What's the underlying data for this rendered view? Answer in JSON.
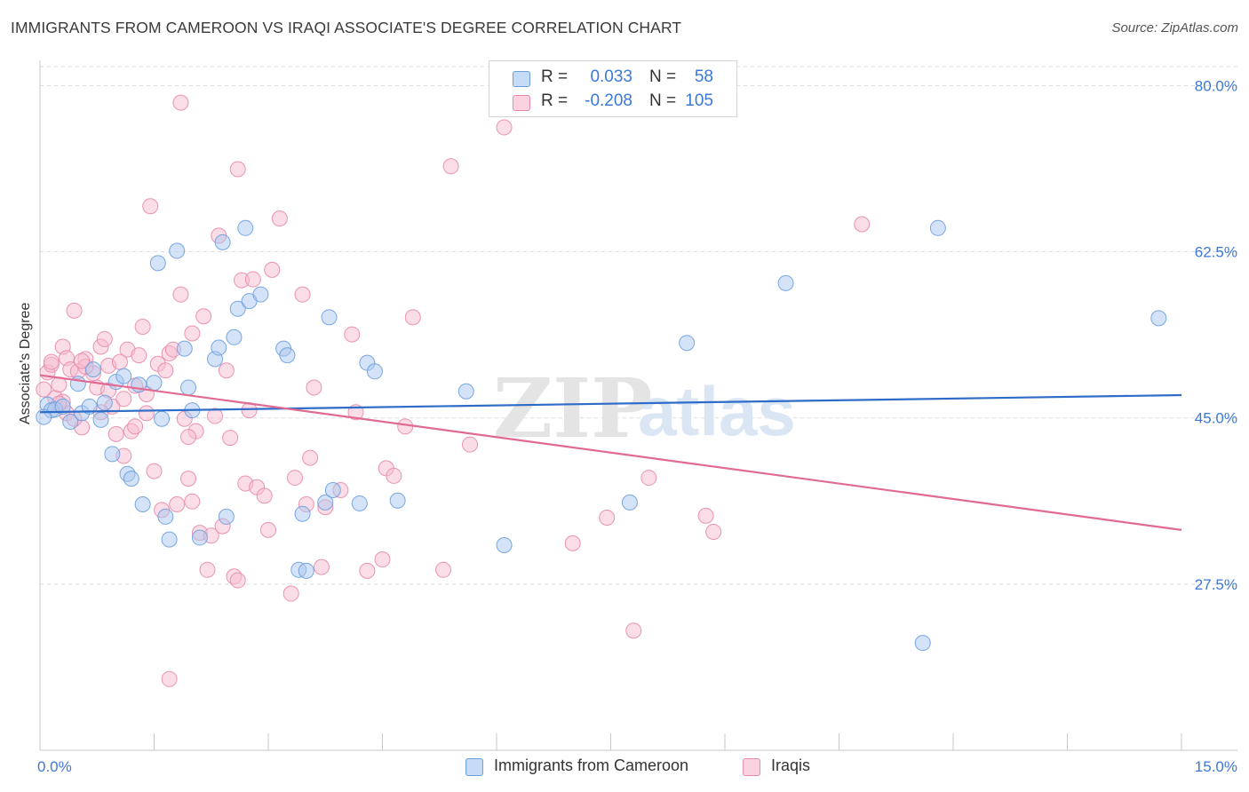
{
  "title": "IMMIGRANTS FROM CAMEROON VS IRAQI ASSOCIATE'S DEGREE CORRELATION CHART",
  "source": "Source: ZipAtlas.com",
  "watermark": {
    "zip": "ZIP",
    "atlas": "atlas"
  },
  "legend": {
    "rows": [
      {
        "r_label": "R =",
        "r_value": "0.033",
        "n_label": "N =",
        "n_value": "58",
        "color": "#aac8f0",
        "border": "#6a9ee0"
      },
      {
        "r_label": "R =",
        "r_value": "-0.208",
        "n_label": "N =",
        "n_value": "105",
        "color": "#f8bcd0",
        "border": "#e88aaa"
      }
    ]
  },
  "bottom_legend": {
    "items": [
      {
        "label": "Immigrants from Cameroon",
        "color": "#aac8f0",
        "border": "#6a9ee0"
      },
      {
        "label": "Iraqis",
        "color": "#f8bcd0",
        "border": "#e88aaa"
      }
    ]
  },
  "chart_data": {
    "type": "scatter",
    "title": "IMMIGRANTS FROM CAMEROON VS IRAQI ASSOCIATE'S DEGREE CORRELATION CHART",
    "xlabel": "",
    "ylabel": "Associate's Degree",
    "xlim": [
      0,
      15
    ],
    "ylim": [
      10,
      82
    ],
    "x_tick_labels": [
      "0.0%",
      "15.0%"
    ],
    "y_ticks": [
      27.5,
      45.0,
      62.5,
      80.0
    ],
    "y_tick_labels": [
      "27.5%",
      "45.0%",
      "62.5%",
      "80.0%"
    ],
    "grid": true,
    "legend_position": "top-center",
    "series": [
      {
        "name": "Immigrants from Cameroon",
        "color": "#6a9ee0",
        "fill": "#aac8f0",
        "trend": {
          "x": [
            0,
            15
          ],
          "y": [
            45.6,
            47.4
          ],
          "color": "#2f6cc8"
        },
        "points": [
          [
            0.1,
            46.4
          ],
          [
            0.15,
            45.8
          ],
          [
            0.2,
            45.9
          ],
          [
            0.3,
            46.2
          ],
          [
            0.4,
            44.6
          ],
          [
            0.5,
            48.6
          ],
          [
            0.55,
            45.5
          ],
          [
            0.65,
            46.2
          ],
          [
            0.7,
            50.1
          ],
          [
            0.8,
            44.8
          ],
          [
            0.85,
            46.6
          ],
          [
            0.95,
            41.2
          ],
          [
            1.0,
            48.8
          ],
          [
            1.1,
            49.4
          ],
          [
            1.15,
            39.1
          ],
          [
            1.2,
            38.6
          ],
          [
            1.3,
            48.5
          ],
          [
            1.35,
            35.9
          ],
          [
            1.5,
            48.7
          ],
          [
            1.55,
            61.3
          ],
          [
            1.6,
            44.9
          ],
          [
            1.65,
            34.6
          ],
          [
            1.7,
            32.2
          ],
          [
            1.8,
            62.6
          ],
          [
            1.9,
            52.3
          ],
          [
            1.95,
            48.2
          ],
          [
            2.0,
            45.8
          ],
          [
            2.1,
            32.4
          ],
          [
            2.3,
            51.2
          ],
          [
            2.35,
            52.4
          ],
          [
            2.4,
            63.5
          ],
          [
            2.45,
            34.6
          ],
          [
            2.55,
            53.5
          ],
          [
            2.6,
            56.5
          ],
          [
            2.7,
            65.0
          ],
          [
            2.75,
            57.3
          ],
          [
            2.9,
            58.0
          ],
          [
            3.2,
            52.3
          ],
          [
            3.25,
            51.6
          ],
          [
            3.4,
            29.0
          ],
          [
            3.45,
            34.9
          ],
          [
            3.5,
            28.9
          ],
          [
            3.75,
            36.1
          ],
          [
            3.8,
            55.6
          ],
          [
            3.85,
            37.4
          ],
          [
            4.2,
            36.0
          ],
          [
            4.3,
            50.8
          ],
          [
            4.4,
            49.9
          ],
          [
            4.7,
            36.3
          ],
          [
            5.6,
            47.8
          ],
          [
            6.1,
            31.6
          ],
          [
            7.75,
            36.1
          ],
          [
            8.5,
            52.9
          ],
          [
            9.8,
            59.2
          ],
          [
            11.6,
            21.3
          ],
          [
            11.8,
            65.0
          ],
          [
            14.7,
            55.5
          ],
          [
            0.05,
            45.1
          ]
        ]
      },
      {
        "name": "Iraqis",
        "color": "#e88aaa",
        "fill": "#f8bcd0",
        "trend": {
          "x": [
            0,
            15
          ],
          "y": [
            49.5,
            33.2
          ],
          "color": "#e06a92"
        },
        "points": [
          [
            0.05,
            48.0
          ],
          [
            0.1,
            49.8
          ],
          [
            0.15,
            50.6
          ],
          [
            0.2,
            47.1
          ],
          [
            0.25,
            48.5
          ],
          [
            0.3,
            52.5
          ],
          [
            0.35,
            51.3
          ],
          [
            0.4,
            50.1
          ],
          [
            0.45,
            56.3
          ],
          [
            0.5,
            49.9
          ],
          [
            0.55,
            44.0
          ],
          [
            0.6,
            51.2
          ],
          [
            0.7,
            49.7
          ],
          [
            0.75,
            48.2
          ],
          [
            0.8,
            52.5
          ],
          [
            0.85,
            53.3
          ],
          [
            0.9,
            50.5
          ],
          [
            0.95,
            46.2
          ],
          [
            1.0,
            43.3
          ],
          [
            1.05,
            50.9
          ],
          [
            1.1,
            47.0
          ],
          [
            1.15,
            52.2
          ],
          [
            1.2,
            43.6
          ],
          [
            1.25,
            44.1
          ],
          [
            1.3,
            51.6
          ],
          [
            1.35,
            54.6
          ],
          [
            1.4,
            45.5
          ],
          [
            1.45,
            67.3
          ],
          [
            1.5,
            39.4
          ],
          [
            1.55,
            50.7
          ],
          [
            1.6,
            35.3
          ],
          [
            1.65,
            50.0
          ],
          [
            1.7,
            51.8
          ],
          [
            1.75,
            52.2
          ],
          [
            1.8,
            35.9
          ],
          [
            1.85,
            58.0
          ],
          [
            1.9,
            44.9
          ],
          [
            1.95,
            38.6
          ],
          [
            2.0,
            53.9
          ],
          [
            2.05,
            43.6
          ],
          [
            2.1,
            32.9
          ],
          [
            2.15,
            55.7
          ],
          [
            2.2,
            29.0
          ],
          [
            2.25,
            32.6
          ],
          [
            2.3,
            45.2
          ],
          [
            2.35,
            64.2
          ],
          [
            2.4,
            33.6
          ],
          [
            2.45,
            50.0
          ],
          [
            2.5,
            42.9
          ],
          [
            2.55,
            28.3
          ],
          [
            2.6,
            71.2
          ],
          [
            2.65,
            59.5
          ],
          [
            2.7,
            38.1
          ],
          [
            2.75,
            45.8
          ],
          [
            2.8,
            59.6
          ],
          [
            2.85,
            37.7
          ],
          [
            2.95,
            36.8
          ],
          [
            3.0,
            33.2
          ],
          [
            3.05,
            60.6
          ],
          [
            3.15,
            66.0
          ],
          [
            3.3,
            26.5
          ],
          [
            3.35,
            38.7
          ],
          [
            3.45,
            58.0
          ],
          [
            3.5,
            35.9
          ],
          [
            3.55,
            40.8
          ],
          [
            3.6,
            48.2
          ],
          [
            3.7,
            29.3
          ],
          [
            3.75,
            35.6
          ],
          [
            3.95,
            37.4
          ],
          [
            4.1,
            53.8
          ],
          [
            4.15,
            45.6
          ],
          [
            4.3,
            28.9
          ],
          [
            4.5,
            30.1
          ],
          [
            4.55,
            39.7
          ],
          [
            4.65,
            38.9
          ],
          [
            4.8,
            44.1
          ],
          [
            4.9,
            55.6
          ],
          [
            5.3,
            29.0
          ],
          [
            5.4,
            71.5
          ],
          [
            5.65,
            42.2
          ],
          [
            6.1,
            75.6
          ],
          [
            7.0,
            31.8
          ],
          [
            7.45,
            34.5
          ],
          [
            7.8,
            22.6
          ],
          [
            8.0,
            38.7
          ],
          [
            8.75,
            34.7
          ],
          [
            8.85,
            33.0
          ],
          [
            10.8,
            65.4
          ],
          [
            1.85,
            78.2
          ],
          [
            0.3,
            46.7
          ],
          [
            0.6,
            50.4
          ],
          [
            0.9,
            47.9
          ],
          [
            1.4,
            47.5
          ],
          [
            0.8,
            45.6
          ],
          [
            1.1,
            41.0
          ],
          [
            0.35,
            45.5
          ],
          [
            1.95,
            43.0
          ],
          [
            2.0,
            36.2
          ],
          [
            1.7,
            17.5
          ],
          [
            2.6,
            27.9
          ],
          [
            0.15,
            50.9
          ],
          [
            0.45,
            44.9
          ],
          [
            1.25,
            48.4
          ],
          [
            0.25,
            46.5
          ],
          [
            0.55,
            51.0
          ]
        ]
      }
    ]
  }
}
